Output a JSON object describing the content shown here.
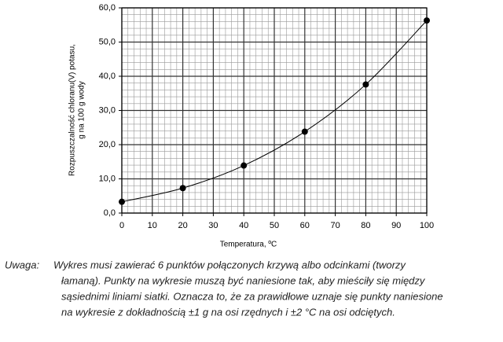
{
  "chart_data": {
    "type": "line",
    "x_label": "Temperatura, ºC",
    "y_label": [
      "Rozpuszczalność chloranu(V) potasu,",
      "g na 100 g wody"
    ],
    "x": [
      0,
      20,
      40,
      60,
      80,
      100
    ],
    "series": [
      {
        "color": "#000000",
        "values": [
          3.3,
          7.3,
          13.9,
          23.8,
          37.6,
          56.3
        ]
      }
    ],
    "xlim": [
      0,
      100
    ],
    "xticks": [
      0,
      10,
      20,
      30,
      40,
      50,
      60,
      70,
      80,
      90,
      100
    ],
    "ylim": [
      0,
      60
    ],
    "yticks": [
      {
        "value": 0,
        "label": "0,0"
      },
      {
        "value": 10,
        "label": "10,0"
      },
      {
        "value": 20,
        "label": "20,0"
      },
      {
        "value": 30,
        "label": "30,0"
      },
      {
        "value": 40,
        "label": "40,0"
      },
      {
        "value": 50,
        "label": "50,0"
      },
      {
        "value": 60,
        "label": "60,0"
      }
    ],
    "grid": true,
    "smooth": true
  },
  "note": {
    "label": "Uwaga:",
    "lines": [
      "Wykres musi zawierać 6 punktów połączonych krzywą albo odcinkami (tworzy",
      "łamaną). Punkty na wykresie muszą być naniesione tak, aby mieściły się między",
      "sąsiednimi liniami siatki. Oznacza to, że za prawidłowe uznaje się punkty naniesione",
      "na wykresie z dokładnością ±1 g na osi rzędnych i ±2 °C na osi odciętych."
    ]
  }
}
